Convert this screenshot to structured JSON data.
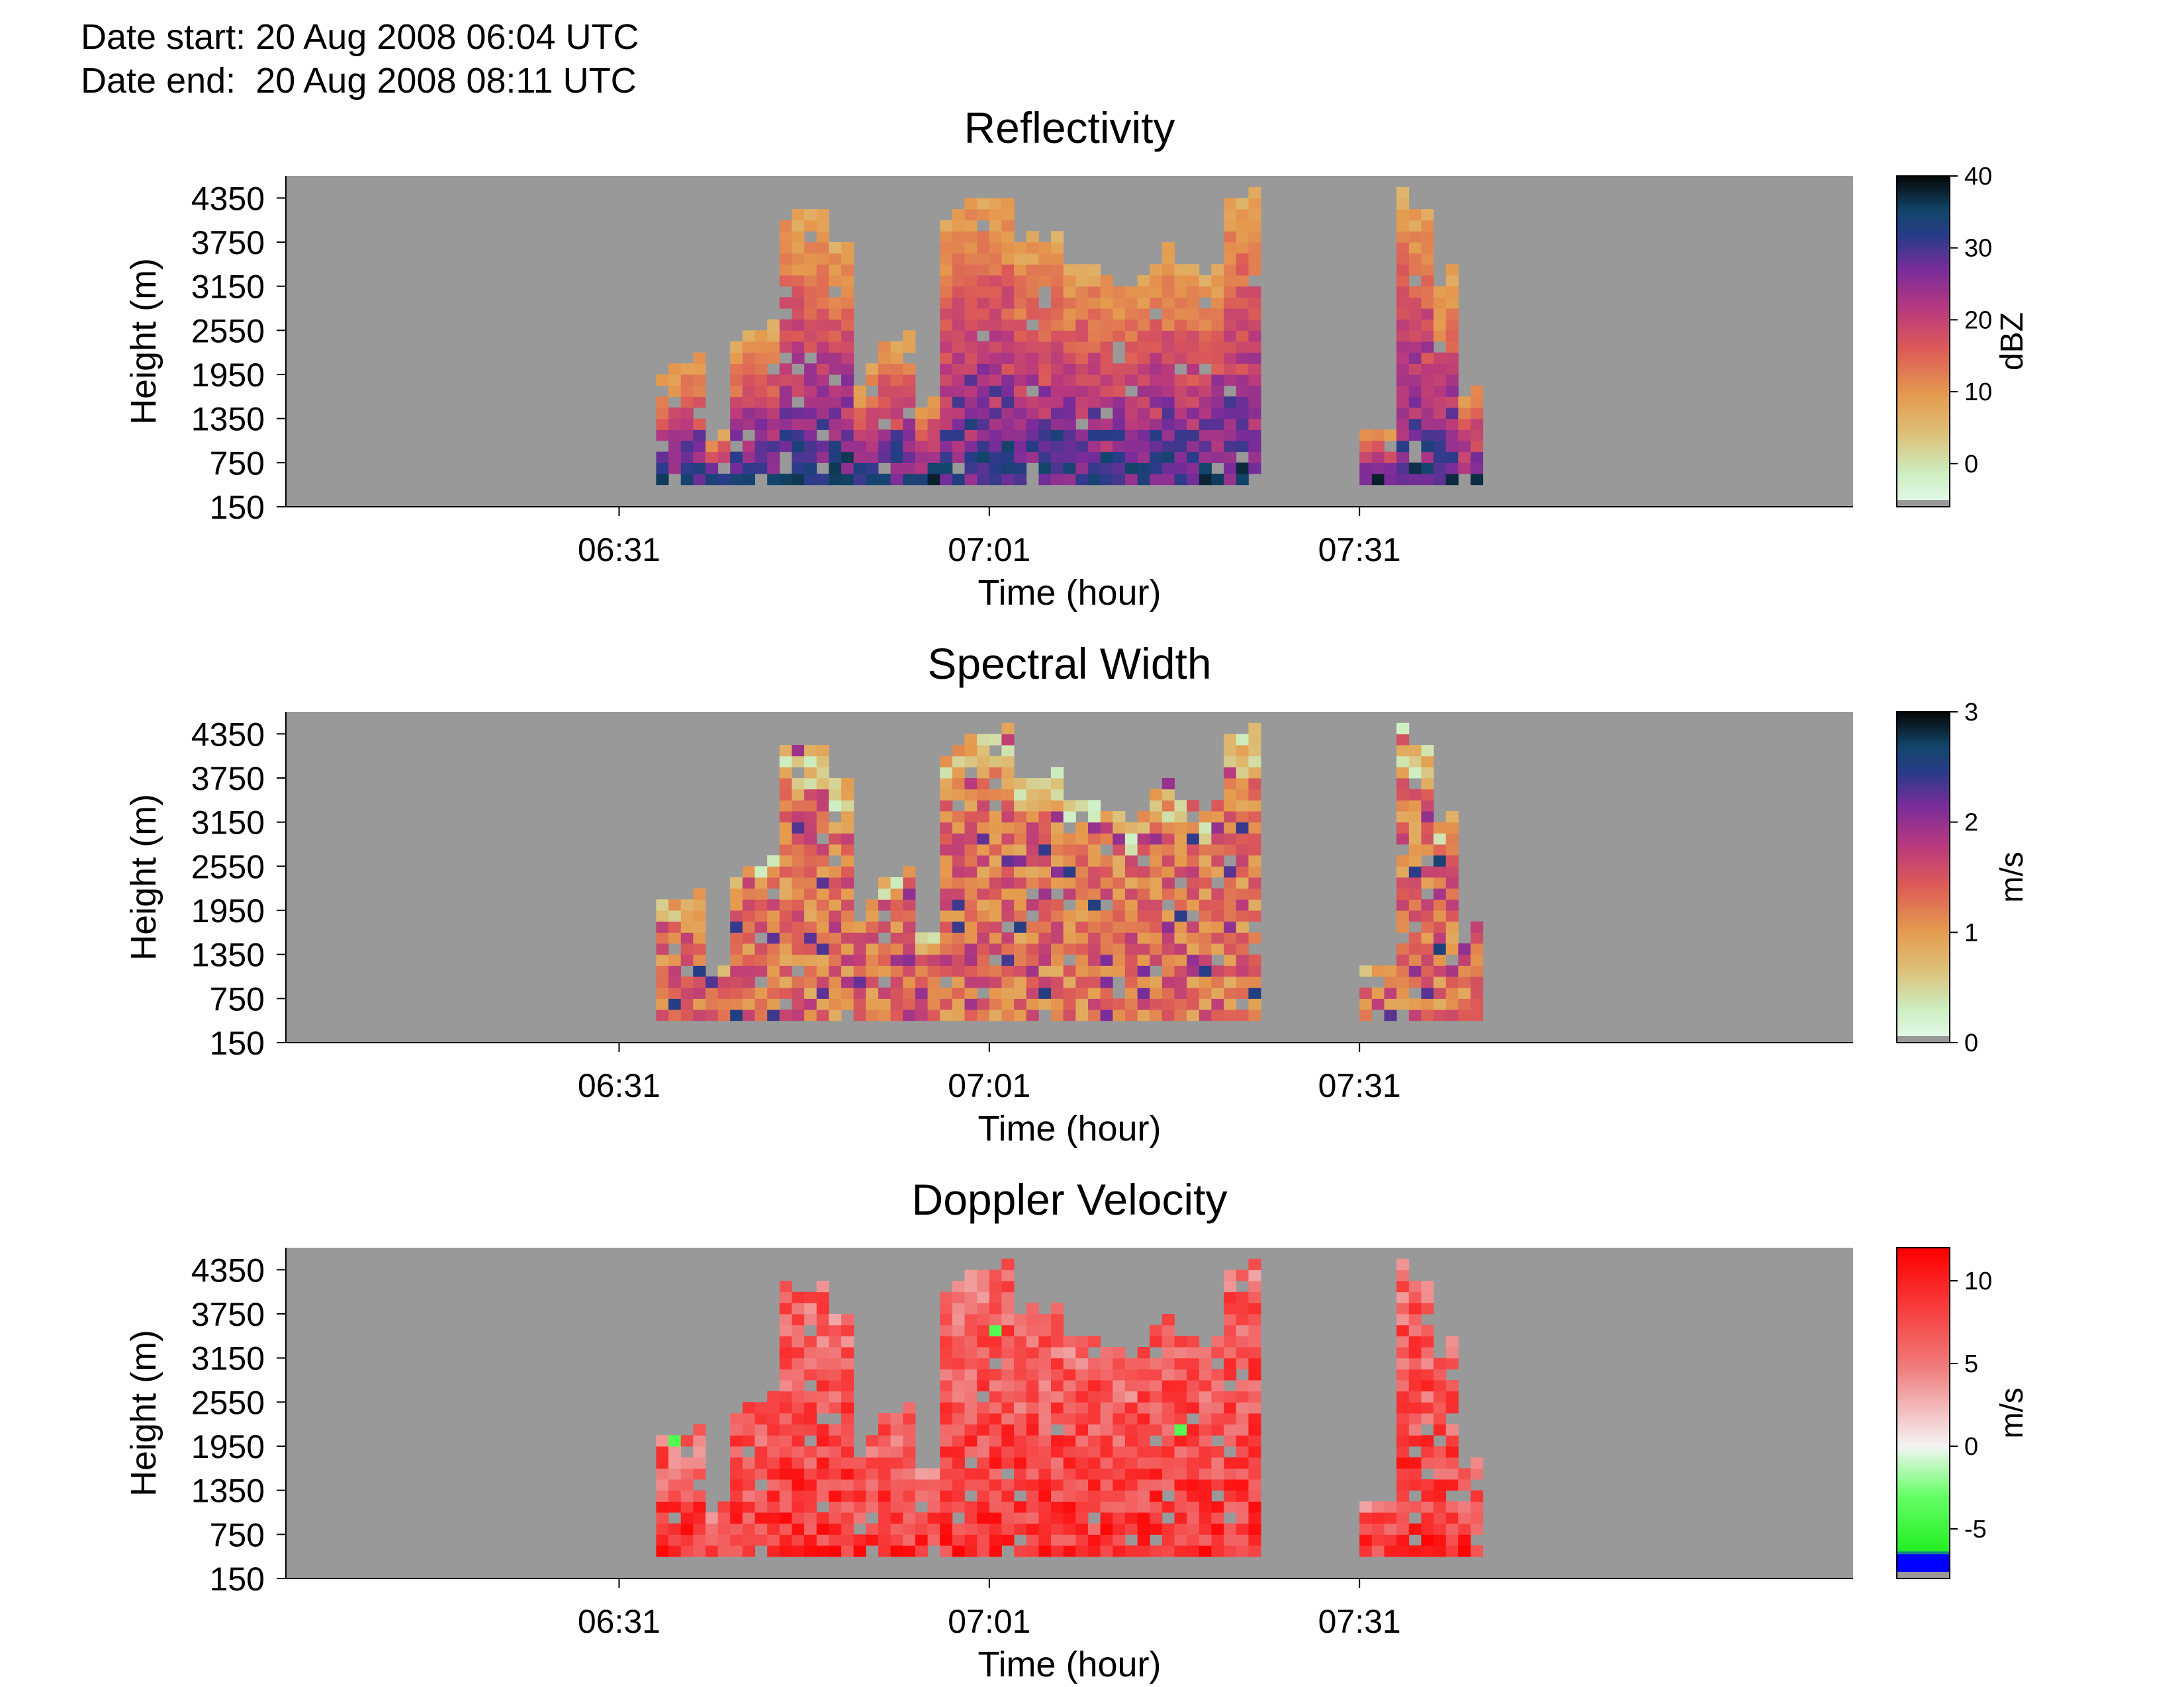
{
  "header": {
    "date_start_label": "Date start:",
    "date_start": "20 Aug 2008 06:04 UTC",
    "date_end_label": "Date end:",
    "date_end": "20 Aug 2008 08:11 UTC"
  },
  "chart_data": [
    {
      "type": "heatmap",
      "title": "Reflectivity",
      "xlabel": "Time (hour)",
      "ylabel": "Height (m)",
      "x_ticks": [
        "06:31",
        "07:01",
        "07:31"
      ],
      "y_ticks": [
        "4350",
        "3750",
        "3150",
        "2550",
        "1950",
        "1350",
        "750",
        "150"
      ],
      "colorbar": {
        "label": "dBZ",
        "ticks": [
          "40",
          "30",
          "20",
          "10",
          "0"
        ],
        "range": [
          -6,
          40
        ]
      },
      "background": "#999999"
    },
    {
      "type": "heatmap",
      "title": "Spectral Width",
      "xlabel": "Time (hour)",
      "ylabel": "Height (m)",
      "x_ticks": [
        "06:31",
        "07:01",
        "07:31"
      ],
      "y_ticks": [
        "4350",
        "3750",
        "3150",
        "2550",
        "1950",
        "1350",
        "750",
        "150"
      ],
      "colorbar": {
        "label": "m/s",
        "ticks": [
          "3",
          "2",
          "1",
          "0"
        ],
        "range": [
          0,
          3
        ]
      },
      "background": "#999999"
    },
    {
      "type": "heatmap",
      "title": "Doppler Velocity",
      "xlabel": "Time (hour)",
      "ylabel": "Height (m)",
      "x_ticks": [
        "06:31",
        "07:01",
        "07:31"
      ],
      "y_ticks": [
        "4350",
        "3750",
        "3150",
        "2550",
        "1950",
        "1350",
        "750",
        "150"
      ],
      "colorbar": {
        "label": "m/s",
        "ticks": [
          "10",
          "5",
          "0",
          "-5"
        ],
        "range": [
          -8,
          12
        ]
      },
      "background": "#999999"
    }
  ]
}
